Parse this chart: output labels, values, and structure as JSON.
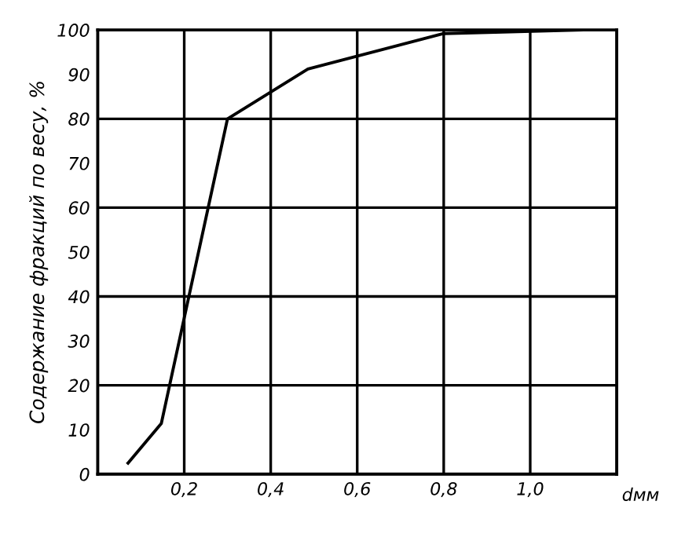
{
  "chart_data": {
    "type": "line",
    "xlabel": "dмм",
    "ylabel": "Содержание фракций по весу, %",
    "x": [
      0.07,
      0.147,
      0.3,
      0.486,
      0.8,
      1.12
    ],
    "series": [
      {
        "color": "#000000",
        "values": [
          2.5,
          11.4,
          80,
          91.2,
          99.2,
          100
        ]
      }
    ],
    "xlim": [
      0,
      1.2
    ],
    "ylim": [
      0,
      100
    ],
    "xticks": [
      {
        "value": 0.2,
        "label": "0,2"
      },
      {
        "value": 0.4,
        "label": "0,4"
      },
      {
        "value": 0.6,
        "label": "0,6"
      },
      {
        "value": 0.8,
        "label": "0,8"
      },
      {
        "value": 1.0,
        "label": "1,0"
      }
    ],
    "yticks": [
      0,
      10,
      20,
      30,
      40,
      50,
      60,
      70,
      80,
      90,
      100
    ],
    "grid": "x",
    "ref_lines": [
      {
        "axis": "y",
        "value": 20
      },
      {
        "axis": "y",
        "value": 40
      },
      {
        "axis": "y",
        "value": 60
      },
      {
        "axis": "y",
        "value": 80
      }
    ],
    "marker": "none",
    "line_style": "solid",
    "legend": false
  }
}
